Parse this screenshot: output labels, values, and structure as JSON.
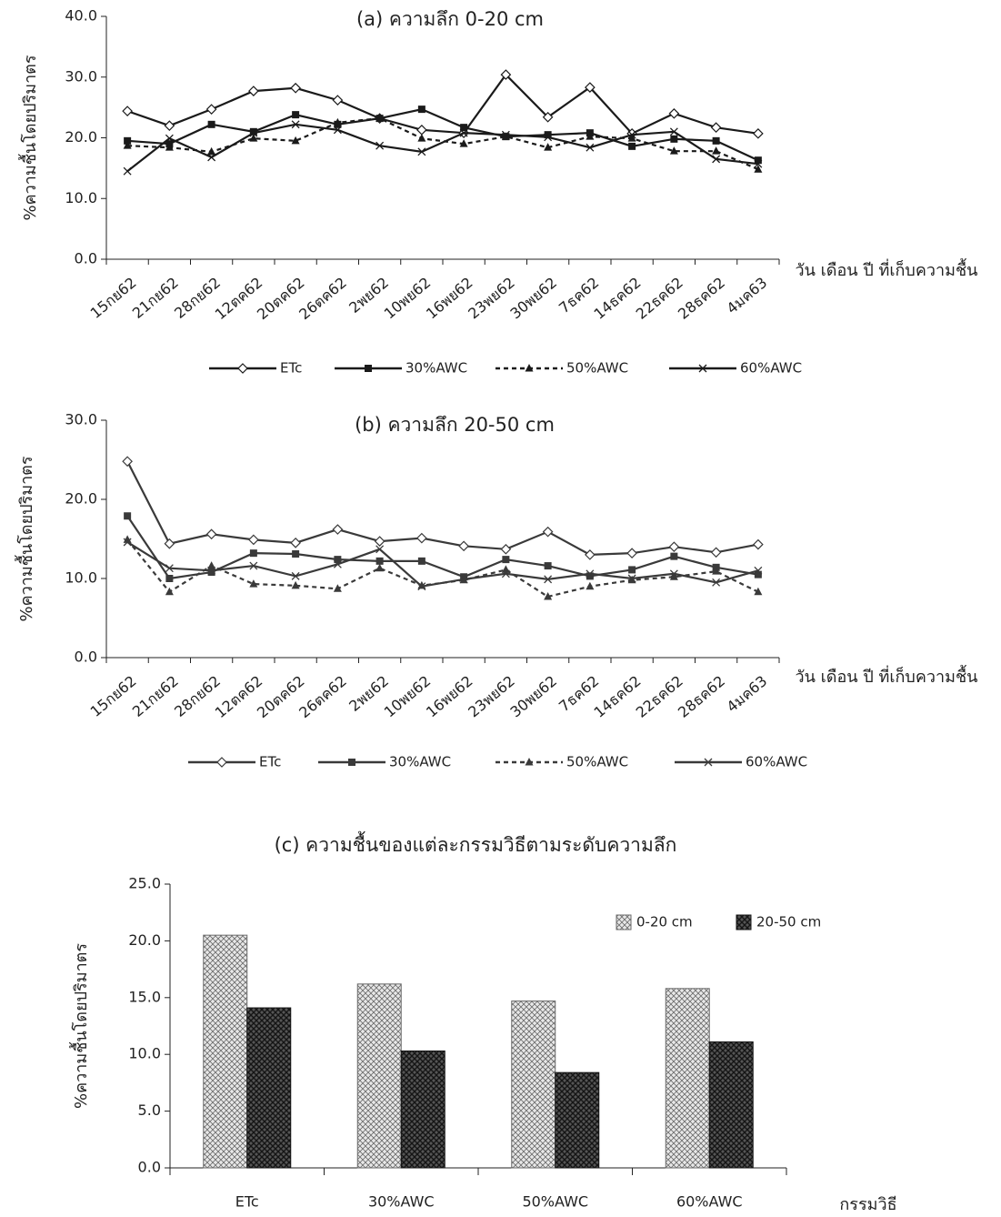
{
  "chart_data": [
    {
      "type": "line",
      "title": "(a) ความลึก 0-20 cm",
      "x_label": "วัน เดือน ปี ที่เก็บความชื้น",
      "y_label": "%ความชื้นโดยปริมาตร",
      "categories": [
        "15กย62",
        "21กย62",
        "28กย62",
        "12ตค62",
        "20ตค62",
        "26ตค62",
        "2พย62",
        "10พย62",
        "16พย62",
        "23พย62",
        "30พย62",
        "7ธค62",
        "14ธค62",
        "22ธค62",
        "28ธค62",
        "4มค63"
      ],
      "series": [
        {
          "name": "ETc",
          "color": "#1a1a1a",
          "marker": "diamond",
          "dashed": false,
          "values": [
            24.4,
            22.0,
            24.7,
            27.7,
            28.2,
            26.2,
            23.2,
            21.3,
            20.8,
            30.4,
            23.4,
            28.3,
            20.7,
            24.0,
            21.7,
            20.7
          ]
        },
        {
          "name": "30%AWC",
          "color": "#1a1a1a",
          "marker": "square",
          "dashed": false,
          "values": [
            19.5,
            19.0,
            22.2,
            21.0,
            23.8,
            22.2,
            23.2,
            24.7,
            21.7,
            20.2,
            20.5,
            20.8,
            18.6,
            19.8,
            19.5,
            16.3
          ]
        },
        {
          "name": "50%AWC",
          "color": "#1a1a1a",
          "marker": "triangle",
          "dashed": true,
          "values": [
            18.7,
            18.4,
            17.7,
            19.9,
            19.5,
            22.5,
            23.2,
            19.9,
            19.0,
            20.2,
            18.4,
            20.2,
            19.9,
            17.8,
            17.8,
            14.8
          ]
        },
        {
          "name": "60%AWC",
          "color": "#1a1a1a",
          "marker": "x",
          "dashed": false,
          "values": [
            14.5,
            19.9,
            16.8,
            20.8,
            22.2,
            21.3,
            18.7,
            17.7,
            20.8,
            20.5,
            20.1,
            18.4,
            20.5,
            21.0,
            16.5,
            15.7
          ]
        }
      ],
      "ylim": [
        0,
        40
      ],
      "yticks": [
        {
          "value": 0,
          "label": "0.0"
        },
        {
          "value": 10,
          "label": "10.0"
        },
        {
          "value": 20,
          "label": "20.0"
        },
        {
          "value": 30,
          "label": "30.0"
        },
        {
          "value": 40,
          "label": "40.0"
        }
      ],
      "legend": "bottom"
    },
    {
      "type": "line",
      "title": "(b) ความลึก 20-50 cm",
      "x_label": "วัน เดือน ปี ที่เก็บความชื้น",
      "y_label": "%ความชื้นโดยปริมาตร",
      "categories": [
        "15กย62",
        "21กย62",
        "28กย62",
        "12ตค62",
        "20ตค62",
        "26ตค62",
        "2พย62",
        "10พย62",
        "16พย62",
        "23พย62",
        "30พย62",
        "7ธค62",
        "14ธค62",
        "22ธค62",
        "28ธค62",
        "4มค63"
      ],
      "series": [
        {
          "name": "ETc",
          "color": "#3a3a3a",
          "marker": "diamond",
          "dashed": false,
          "values": [
            24.8,
            14.4,
            15.6,
            14.9,
            14.5,
            16.2,
            14.7,
            15.1,
            14.1,
            13.7,
            15.9,
            13.0,
            13.2,
            14.0,
            13.3,
            14.3
          ]
        },
        {
          "name": "30%AWC",
          "color": "#3a3a3a",
          "marker": "square",
          "dashed": false,
          "values": [
            17.9,
            10.0,
            10.8,
            13.2,
            13.1,
            12.4,
            12.2,
            12.2,
            10.2,
            12.4,
            11.6,
            10.3,
            11.1,
            12.8,
            11.4,
            10.5
          ]
        },
        {
          "name": "50%AWC",
          "color": "#3a3a3a",
          "marker": "triangle",
          "dashed": true,
          "values": [
            14.9,
            8.3,
            11.6,
            9.3,
            9.1,
            8.7,
            11.3,
            9.1,
            9.8,
            11.1,
            7.7,
            9.0,
            9.8,
            10.2,
            10.9,
            8.3
          ]
        },
        {
          "name": "60%AWC",
          "color": "#3a3a3a",
          "marker": "x",
          "dashed": false,
          "values": [
            14.6,
            11.3,
            11.0,
            11.6,
            10.3,
            11.8,
            13.7,
            9.0,
            9.9,
            10.6,
            9.9,
            10.6,
            10.0,
            10.6,
            9.5,
            11.0
          ]
        }
      ],
      "ylim": [
        0,
        30
      ],
      "yticks": [
        {
          "value": 0,
          "label": "0.0"
        },
        {
          "value": 10,
          "label": "10.0"
        },
        {
          "value": 20,
          "label": "20.0"
        },
        {
          "value": 30,
          "label": "30.0"
        }
      ],
      "legend": "bottom"
    },
    {
      "type": "bar",
      "title": "(c) ความชื้นของแต่ละกรรมวิธีตามระดับความลึก",
      "x_label": "กรรมวิธี",
      "y_label": "%ความชื้นโดยปริมาตร",
      "categories": [
        "ETc",
        "30%AWC",
        "50%AWC",
        "60%AWC"
      ],
      "series": [
        {
          "name": "0-20 cm",
          "color": "#6a6a6a",
          "values": [
            20.5,
            16.2,
            14.7,
            15.8
          ]
        },
        {
          "name": "20-50 cm",
          "color": "#151515",
          "values": [
            14.1,
            10.3,
            8.4,
            11.1
          ]
        }
      ],
      "ylim": [
        0,
        25
      ],
      "yticks": [
        {
          "value": 0,
          "label": "0.0"
        },
        {
          "value": 5,
          "label": "5.0"
        },
        {
          "value": 10,
          "label": "10.0"
        },
        {
          "value": 15,
          "label": "15.0"
        },
        {
          "value": 20,
          "label": "20.0"
        },
        {
          "value": 25,
          "label": "25.0"
        }
      ],
      "legend": "upper right"
    }
  ]
}
